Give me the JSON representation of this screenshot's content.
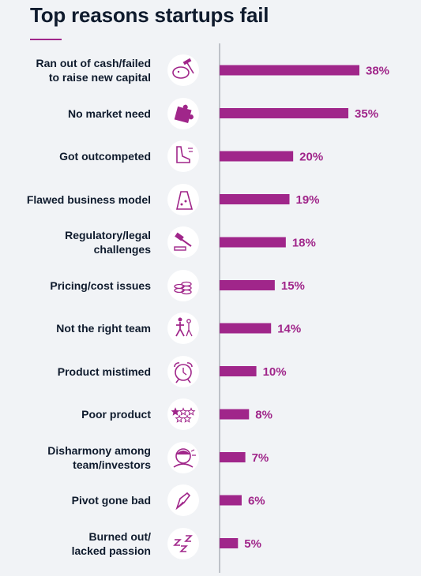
{
  "page": {
    "title": "Top reasons startups fail"
  },
  "chart_data": {
    "type": "bar",
    "orientation": "horizontal",
    "title": "Top reasons startups fail",
    "categories": [
      [
        "Ran out of cash/failed",
        "to raise new capital"
      ],
      [
        "No market need"
      ],
      [
        "Got outcompeted"
      ],
      [
        "Flawed business model"
      ],
      [
        "Regulatory/legal",
        "challenges"
      ],
      [
        "Pricing/cost issues"
      ],
      [
        "Not the right team"
      ],
      [
        "Product mistimed"
      ],
      [
        "Poor product"
      ],
      [
        "Disharmony among",
        "team/investors"
      ],
      [
        "Pivot gone bad"
      ],
      [
        "Burned out/",
        "lacked passion"
      ]
    ],
    "values": [
      38,
      35,
      20,
      19,
      18,
      15,
      14,
      10,
      8,
      7,
      6,
      5
    ],
    "value_labels": [
      "38%",
      "35%",
      "20%",
      "19%",
      "18%",
      "15%",
      "14%",
      "10%",
      "8%",
      "7%",
      "6%",
      "5%"
    ],
    "icons": [
      "piggy-bank-hammer-icon",
      "puzzle-piece-icon",
      "running-shoe-icon",
      "cheese-wedge-icon",
      "gavel-icon",
      "coin-stack-icon",
      "team-walk-icon",
      "alarm-clock-icon",
      "star-rating-icon",
      "stressed-person-icon",
      "pen-nib-icon",
      "sleep-zzz-icon"
    ],
    "xlim": [
      0,
      38
    ],
    "grid": false,
    "colors": {
      "bar": "#a0268a",
      "value_label": "#a0268a",
      "axis": "#8a9099",
      "label": "#0f1b2d",
      "icon": "#a0268a",
      "background": "#f1f3f6"
    }
  }
}
